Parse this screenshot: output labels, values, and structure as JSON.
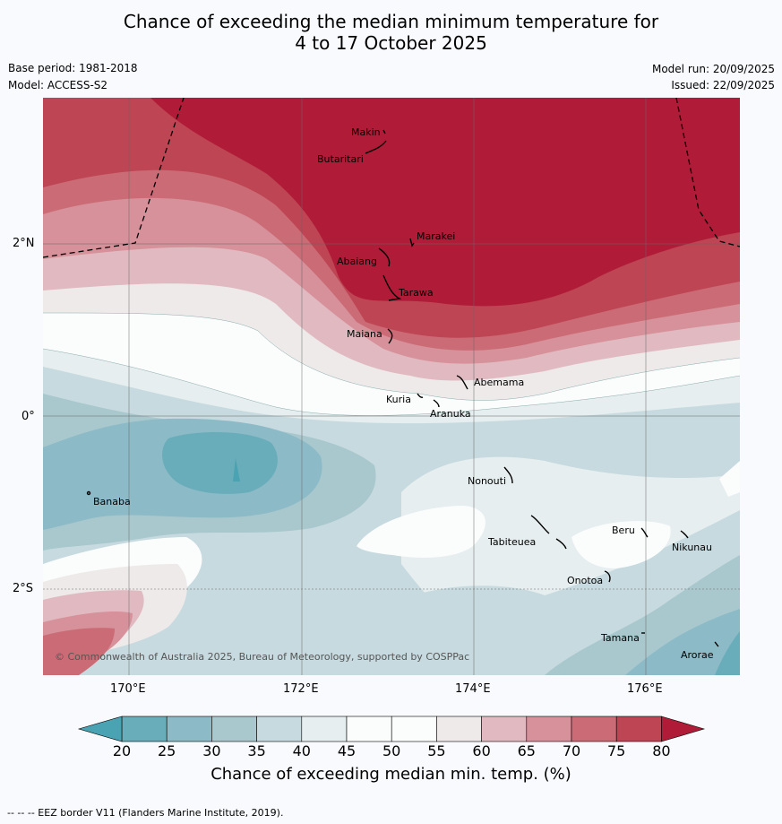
{
  "title": {
    "line1": "Chance of exceeding the median minimum temperature for",
    "line2": "4 to 17 October 2025"
  },
  "meta": {
    "base_period": "Base period: 1981-2018",
    "model": "Model: ACCESS-S2",
    "model_run": "Model run: 20/09/2025",
    "issued": "Issued: 22/09/2025"
  },
  "axes": {
    "lon_labels": [
      "170°E",
      "172°E",
      "174°E",
      "176°E"
    ],
    "lat_labels": [
      "2°N",
      "0°",
      "2°S"
    ]
  },
  "islands": {
    "makin": "Makin",
    "butaritari": "Butaritari",
    "marakei": "Marakei",
    "abaiang": "Abaiang",
    "tarawa": "Tarawa",
    "maiana": "Maiana",
    "abemama": "Abemama",
    "kuria": "Kuria",
    "aranuka": "Aranuka",
    "banaba": "Banaba",
    "nonouti": "Nonouti",
    "beru": "Beru",
    "tabiteuea": "Tabiteuea",
    "nikunau": "Nikunau",
    "onotoa": "Onotoa",
    "tamana": "Tamana",
    "arorae": "Arorae"
  },
  "copyright": "© Commonwealth of Australia 2025, Bureau of Meteorology, supported by COSPPac",
  "colorbar": {
    "ticks": [
      "20",
      "25",
      "30",
      "35",
      "40",
      "45",
      "50",
      "55",
      "60",
      "65",
      "70",
      "75",
      "80"
    ],
    "colors": [
      "#68adb9",
      "#8cbac7",
      "#a8c8ce",
      "#c7dadf",
      "#e6eeef",
      "#fbfdfd",
      "#fbfdfd",
      "#eeeaea",
      "#e0bac0",
      "#d6919a",
      "#cb6b75",
      "#be4553"
    ],
    "under_color": "#4aa3b3",
    "over_color": "#b01c38",
    "title": "Chance of exceeding median min. temp. (%)"
  },
  "footnote": "--  --  -- EEZ border V11 (Flanders Marine Institute, 2019)."
}
